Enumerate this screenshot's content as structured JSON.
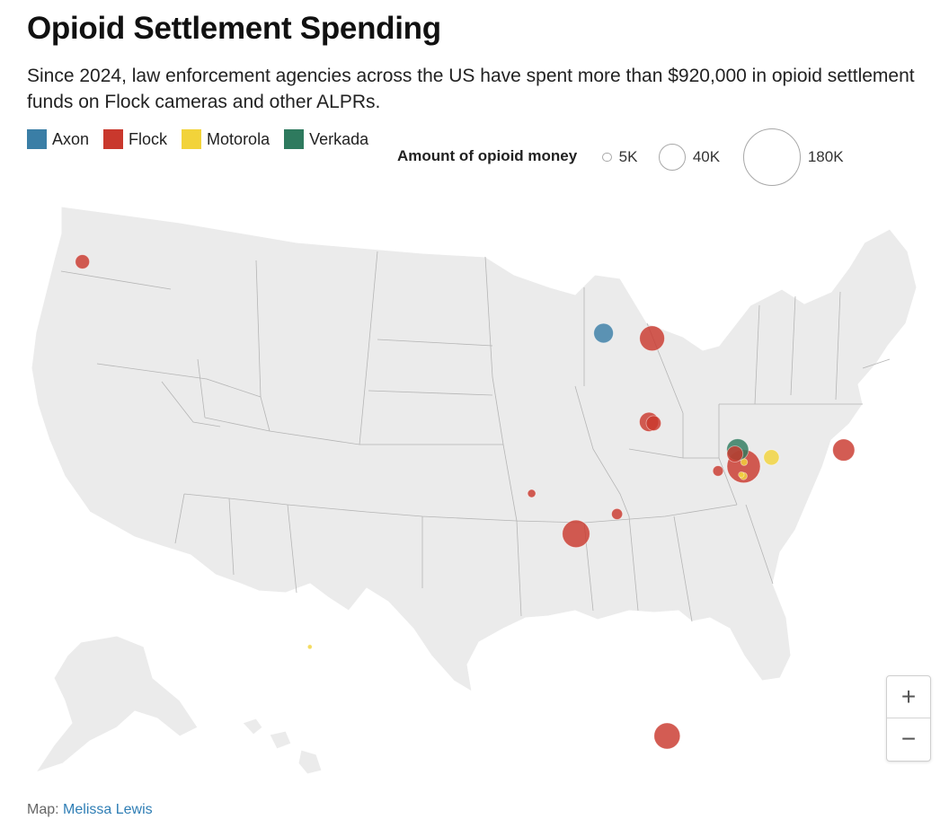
{
  "title": "Opioid Settlement Spending",
  "subtitle": "Since 2024, law enforcement agencies across the US have spent more than $920,000 in opioid settlement funds on Flock cameras and other ALPRs.",
  "legend": {
    "vendors": [
      {
        "label": "Axon",
        "color": "#3a7ea6"
      },
      {
        "label": "Flock",
        "color": "#c9382d"
      },
      {
        "label": "Motorola",
        "color": "#f2d33a"
      },
      {
        "label": "Verkada",
        "color": "#2e7a5e"
      }
    ],
    "size_title": "Amount of opioid money",
    "sizes": [
      {
        "label": "5K",
        "amount": 5000
      },
      {
        "label": "40K",
        "amount": 40000
      },
      {
        "label": "180K",
        "amount": 180000
      }
    ]
  },
  "map": {
    "projection": "albers-usa",
    "background": "#ebebeb",
    "border_color": "#b5b5b5",
    "points": [
      {
        "region": "Washington",
        "lon": -122.6,
        "lat": 47.1,
        "vendor": "Flock",
        "amount": 11000
      },
      {
        "region": "Wisconsin",
        "lon": -91.3,
        "lat": 44.8,
        "vendor": "Axon",
        "amount": 21000
      },
      {
        "region": "Wisconsin",
        "lon": -88.3,
        "lat": 44.6,
        "vendor": "Flock",
        "amount": 34000
      },
      {
        "region": "Illinois",
        "lon": -88.2,
        "lat": 41.6,
        "vendor": "Flock",
        "amount": 20000
      },
      {
        "region": "Illinois",
        "lon": -87.9,
        "lat": 41.55,
        "vendor": "Flock",
        "amount": 12000
      },
      {
        "region": "Kansas",
        "lon": -95.7,
        "lat": 39.05,
        "vendor": "Flock",
        "amount": 3500
      },
      {
        "region": "Missouri",
        "lon": -92.7,
        "lat": 37.6,
        "vendor": "Flock",
        "amount": 41000
      },
      {
        "region": "Missouri",
        "lon": -90.0,
        "lat": 38.3,
        "vendor": "Flock",
        "amount": 6500
      },
      {
        "region": "Arizona",
        "lon": -111.5,
        "lat": 33.45,
        "vendor": "Motorola",
        "amount": 1000
      },
      {
        "region": "Ohio",
        "lon": -82.35,
        "lat": 40.55,
        "vendor": "Verkada",
        "amount": 26000
      },
      {
        "region": "Ohio",
        "lon": -82.5,
        "lat": 40.4,
        "vendor": "Flock",
        "amount": 14000
      },
      {
        "region": "Ohio",
        "lon": -81.85,
        "lat": 39.95,
        "vendor": "Flock",
        "amount": 60000
      },
      {
        "region": "Ohio",
        "lon": -83.5,
        "lat": 39.8,
        "vendor": "Flock",
        "amount": 6000
      },
      {
        "region": "Ohio",
        "lon": -81.85,
        "lat": 40.1,
        "vendor": "Motorola",
        "amount": 2500
      },
      {
        "region": "Ohio",
        "lon": -81.8,
        "lat": 39.6,
        "vendor": "Motorola",
        "amount": 3000
      },
      {
        "region": "West Virginia",
        "lon": -81.95,
        "lat": 39.65,
        "vendor": "Motorola",
        "amount": 1800
      },
      {
        "region": "Pennsylvania",
        "lon": -80.1,
        "lat": 40.25,
        "vendor": "Motorola",
        "amount": 13000
      },
      {
        "region": "Pennsylvania",
        "lon": -75.45,
        "lat": 40.45,
        "vendor": "Flock",
        "amount": 26000
      },
      {
        "region": "Florida",
        "lon": -85.55,
        "lat": 30.3,
        "vendor": "Flock",
        "amount": 37000
      }
    ]
  },
  "zoom": {
    "in_label": "+",
    "out_label": "−"
  },
  "credit": {
    "prefix": "Map:",
    "author": "Melissa Lewis"
  }
}
